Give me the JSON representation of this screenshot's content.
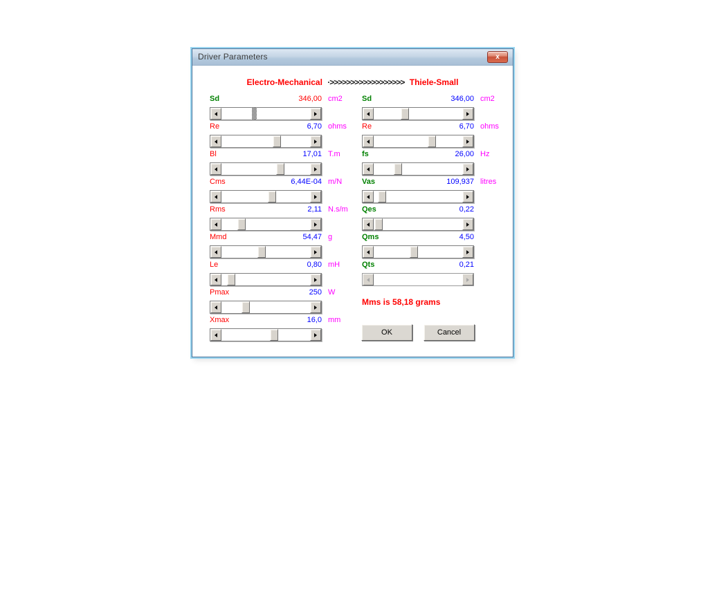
{
  "window": {
    "title": "Driver Parameters",
    "close_glyph": "x"
  },
  "header": {
    "left_title": "Electro-Mechanical",
    "separator": "·>>>>>>>>>>>>>>>>>>",
    "right_title": "Thiele-Small"
  },
  "em": {
    "params": [
      {
        "id": "Sd",
        "label": "Sd",
        "value": "346,00",
        "unit": "cm2",
        "label_color": "#008000",
        "label_weight": "bold",
        "value_color": "#ff0000",
        "slider_pos": 0.36,
        "focused": true
      },
      {
        "id": "Re",
        "label": "Re",
        "value": "6,70",
        "unit": "ohms",
        "label_color": "#ff0000",
        "label_weight": "normal",
        "value_color": "#0000ff",
        "slider_pos": 0.64
      },
      {
        "id": "Bl",
        "label": "Bl",
        "value": "17,01",
        "unit": "T.m",
        "label_color": "#ff0000",
        "label_weight": "normal",
        "value_color": "#0000ff",
        "slider_pos": 0.68
      },
      {
        "id": "Cms",
        "label": "Cms",
        "value": "6,44E-04",
        "unit": "m/N",
        "label_color": "#ff0000",
        "label_weight": "normal",
        "value_color": "#0000ff",
        "slider_pos": 0.58
      },
      {
        "id": "Rms",
        "label": "Rms",
        "value": "2,11",
        "unit": "N.s/m",
        "label_color": "#ff0000",
        "label_weight": "normal",
        "value_color": "#0000ff",
        "slider_pos": 0.2
      },
      {
        "id": "Mmd",
        "label": "Mmd",
        "value": "54,47",
        "unit": "g",
        "label_color": "#ff0000",
        "label_weight": "normal",
        "value_color": "#0000ff",
        "slider_pos": 0.45
      },
      {
        "id": "Le",
        "label": "Le",
        "value": "0,80",
        "unit": "mH",
        "label_color": "#ff0000",
        "label_weight": "normal",
        "value_color": "#0000ff",
        "slider_pos": 0.07
      },
      {
        "id": "Pmax",
        "label": "Pmax",
        "value": "250",
        "unit": "W",
        "label_color": "#ff0000",
        "label_weight": "normal",
        "value_color": "#0000ff",
        "slider_pos": 0.25
      },
      {
        "id": "Xmax",
        "label": "Xmax",
        "value": "16,0",
        "unit": "mm",
        "label_color": "#ff0000",
        "label_weight": "normal",
        "value_color": "#0000ff",
        "slider_pos": 0.6
      }
    ]
  },
  "ts": {
    "params": [
      {
        "id": "Sd",
        "label": "Sd",
        "value": "346,00",
        "unit": "cm2",
        "label_color": "#008000",
        "label_weight": "bold",
        "value_color": "#0000ff",
        "slider_pos": 0.34
      },
      {
        "id": "Re",
        "label": "Re",
        "value": "6,70",
        "unit": "ohms",
        "label_color": "#ff0000",
        "label_weight": "normal",
        "value_color": "#0000ff",
        "slider_pos": 0.67
      },
      {
        "id": "fs",
        "label": "fs",
        "value": "26,00",
        "unit": "Hz",
        "label_color": "#008000",
        "label_weight": "bold",
        "value_color": "#0000ff",
        "slider_pos": 0.25
      },
      {
        "id": "Vas",
        "label": "Vas",
        "value": "109,937",
        "unit": "litres",
        "label_color": "#008000",
        "label_weight": "bold",
        "value_color": "#0000ff",
        "slider_pos": 0.05
      },
      {
        "id": "Qes",
        "label": "Qes",
        "value": "0,22",
        "unit": "",
        "label_color": "#008000",
        "label_weight": "bold",
        "value_color": "#0000ff",
        "slider_pos": 0.01
      },
      {
        "id": "Qms",
        "label": "Qms",
        "value": "4,50",
        "unit": "",
        "label_color": "#008000",
        "label_weight": "bold",
        "value_color": "#0000ff",
        "slider_pos": 0.45
      },
      {
        "id": "Qts",
        "label": "Qts",
        "value": "0,21",
        "unit": "",
        "label_color": "#008000",
        "label_weight": "bold",
        "value_color": "#0000ff",
        "slider_pos": 0,
        "disabled": true
      }
    ]
  },
  "note": {
    "mms_text": "Mms is 58,18 grams"
  },
  "actions": {
    "ok_label": "OK",
    "cancel_label": "Cancel"
  },
  "colors": {
    "label_green": "#008000",
    "label_red": "#ff0000",
    "value_blue": "#0000ff",
    "value_red": "#ff0000",
    "unit_magenta": "#ff00ff",
    "header_red": "#ff0000",
    "frame_outer": "#98d5f0",
    "frame_inner": "#4a7298"
  }
}
